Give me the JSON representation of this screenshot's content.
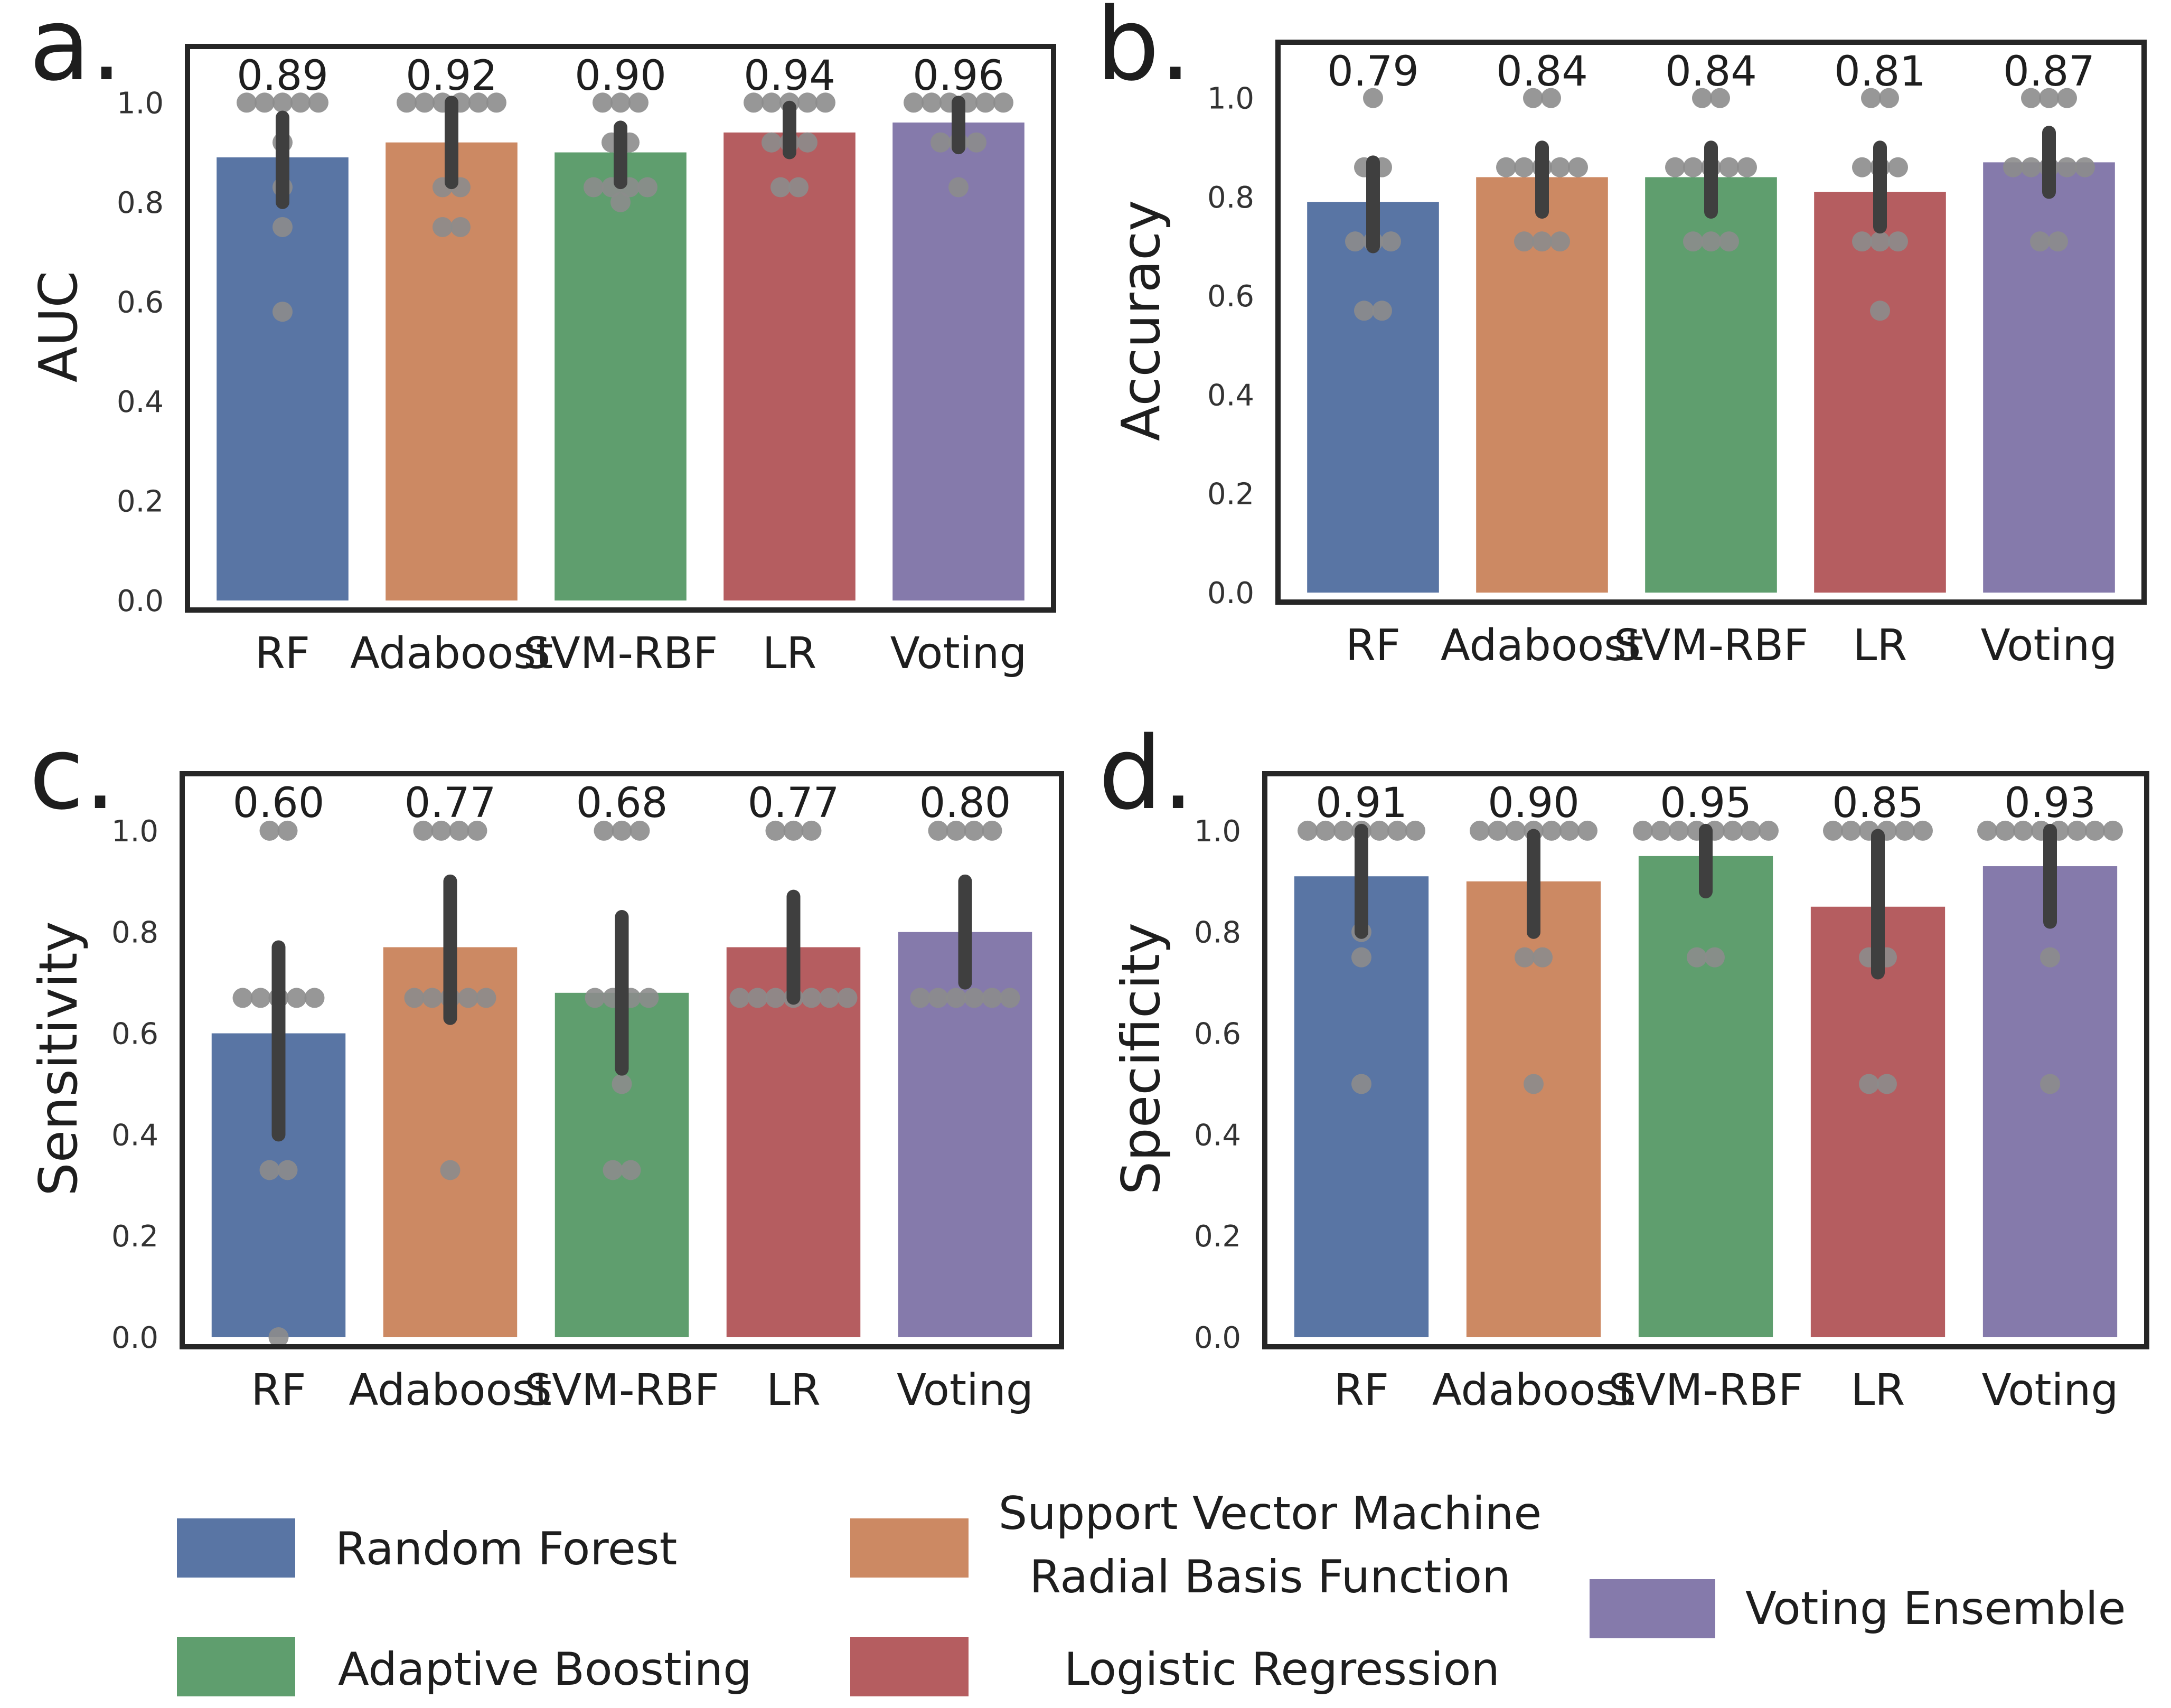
{
  "figure": {
    "legend": [
      {
        "label_lines": [
          "Random Forest"
        ],
        "color": "#5975a4"
      },
      {
        "label_lines": [
          "Support Vector Machine",
          "Radial Basis Function"
        ],
        "color": "#cc8963"
      },
      {
        "label_lines": [
          "Adaptive Boosting"
        ],
        "color": "#5f9e6e"
      },
      {
        "label_lines": [
          "Logistic Regression"
        ],
        "color": "#b55d60"
      },
      {
        "label_lines": [
          "Voting Ensemble"
        ],
        "color": "#857aab"
      }
    ]
  },
  "chart_data": [
    {
      "type": "bar",
      "panel_letter": "a.",
      "ylabel": "AUC",
      "ylim": [
        0,
        1.1
      ],
      "yticks": [
        "0.0",
        "0.2",
        "0.4",
        "0.6",
        "0.8",
        "1.0"
      ],
      "categories": [
        "RF",
        "Adaboost",
        "SVM-RBF",
        "LR",
        "Voting"
      ],
      "values": [
        0.89,
        0.92,
        0.9,
        0.94,
        0.96
      ],
      "value_labels": [
        "0.89",
        "0.92",
        "0.90",
        "0.94",
        "0.96"
      ],
      "errors": [
        [
          0.8,
          0.97
        ],
        [
          0.84,
          1.0
        ],
        [
          0.84,
          0.95
        ],
        [
          0.9,
          0.99
        ],
        [
          0.91,
          1.0
        ]
      ],
      "points": [
        [
          1,
          1,
          1,
          1,
          1,
          0.92,
          0.83,
          0.75,
          0.58
        ],
        [
          1,
          1,
          1,
          1,
          1,
          1,
          0.83,
          0.83,
          0.75,
          0.75
        ],
        [
          1,
          1,
          1,
          0.92,
          0.92,
          0.83,
          0.83,
          0.83,
          0.83,
          0.8
        ],
        [
          1,
          1,
          1,
          1,
          1,
          0.92,
          0.92,
          0.92,
          0.83,
          0.83
        ],
        [
          1,
          1,
          1,
          1,
          1,
          1,
          0.92,
          0.92,
          0.92,
          0.83
        ]
      ],
      "colors": [
        "#5975a4",
        "#cc8963",
        "#5f9e6e",
        "#b55d60",
        "#857aab"
      ]
    },
    {
      "type": "bar",
      "panel_letter": "b.",
      "ylabel": "Accuracy",
      "ylim": [
        0,
        1.1
      ],
      "yticks": [
        "0.0",
        "0.2",
        "0.4",
        "0.6",
        "0.8",
        "1.0"
      ],
      "categories": [
        "RF",
        "Adaboost",
        "SVM-RBF",
        "LR",
        "Voting"
      ],
      "values": [
        0.79,
        0.84,
        0.84,
        0.81,
        0.87
      ],
      "value_labels": [
        "0.79",
        "0.84",
        "0.84",
        "0.81",
        "0.87"
      ],
      "errors": [
        [
          0.7,
          0.87
        ],
        [
          0.77,
          0.9
        ],
        [
          0.77,
          0.9
        ],
        [
          0.74,
          0.9
        ],
        [
          0.81,
          0.93
        ]
      ],
      "points": [
        [
          1,
          0.86,
          0.86,
          0.71,
          0.71,
          0.71,
          0.57,
          0.57
        ],
        [
          1,
          1,
          0.86,
          0.86,
          0.86,
          0.86,
          0.86,
          0.71,
          0.71,
          0.71
        ],
        [
          1,
          1,
          0.86,
          0.86,
          0.86,
          0.86,
          0.86,
          0.71,
          0.71,
          0.71
        ],
        [
          1,
          1,
          0.86,
          0.86,
          0.86,
          0.71,
          0.71,
          0.71,
          0.57
        ],
        [
          1,
          1,
          1,
          0.86,
          0.86,
          0.86,
          0.86,
          0.86,
          0.71,
          0.71
        ]
      ],
      "colors": [
        "#5975a4",
        "#cc8963",
        "#5f9e6e",
        "#b55d60",
        "#857aab"
      ]
    },
    {
      "type": "bar",
      "panel_letter": "c.",
      "ylabel": "Sensitivity",
      "ylim": [
        0,
        1.1
      ],
      "yticks": [
        "0.0",
        "0.2",
        "0.4",
        "0.6",
        "0.8",
        "1.0"
      ],
      "categories": [
        "RF",
        "Adaboost",
        "SVM-RBF",
        "LR",
        "Voting"
      ],
      "values": [
        0.6,
        0.77,
        0.68,
        0.77,
        0.8
      ],
      "value_labels": [
        "0.60",
        "0.77",
        "0.68",
        "0.77",
        "0.80"
      ],
      "errors": [
        [
          0.4,
          0.77
        ],
        [
          0.63,
          0.9
        ],
        [
          0.53,
          0.83
        ],
        [
          0.67,
          0.87
        ],
        [
          0.7,
          0.9
        ]
      ],
      "points": [
        [
          1,
          1,
          0.67,
          0.67,
          0.67,
          0.67,
          0.67,
          0.33,
          0.33,
          0
        ],
        [
          1,
          1,
          1,
          1,
          0.67,
          0.67,
          0.67,
          0.67,
          0.67,
          0.33
        ],
        [
          1,
          1,
          1,
          0.67,
          0.67,
          0.67,
          0.67,
          0.5,
          0.33,
          0.33
        ],
        [
          1,
          1,
          1,
          0.67,
          0.67,
          0.67,
          0.67,
          0.67,
          0.67,
          0.67
        ],
        [
          1,
          1,
          1,
          1,
          0.67,
          0.67,
          0.67,
          0.67,
          0.67,
          0.67
        ]
      ],
      "colors": [
        "#5975a4",
        "#cc8963",
        "#5f9e6e",
        "#b55d60",
        "#857aab"
      ]
    },
    {
      "type": "bar",
      "panel_letter": "d.",
      "ylabel": "Specificity",
      "ylim": [
        0,
        1.1
      ],
      "yticks": [
        "0.0",
        "0.2",
        "0.4",
        "0.6",
        "0.8",
        "1.0"
      ],
      "categories": [
        "RF",
        "Adaboost",
        "SVM-RBF",
        "LR",
        "Voting"
      ],
      "values": [
        0.91,
        0.9,
        0.95,
        0.85,
        0.93
      ],
      "value_labels": [
        "0.91",
        "0.90",
        "0.95",
        "0.85",
        "0.93"
      ],
      "errors": [
        [
          0.8,
          1.0
        ],
        [
          0.8,
          0.99
        ],
        [
          0.88,
          1.0
        ],
        [
          0.72,
          0.99
        ],
        [
          0.82,
          1.0
        ]
      ],
      "points": [
        [
          1,
          1,
          1,
          1,
          1,
          1,
          1,
          0.8,
          0.75,
          0.5
        ],
        [
          1,
          1,
          1,
          1,
          1,
          1,
          1,
          0.75,
          0.75,
          0.5
        ],
        [
          1,
          1,
          1,
          1,
          1,
          1,
          1,
          1,
          0.75,
          0.75
        ],
        [
          1,
          1,
          1,
          1,
          1,
          1,
          0.75,
          0.75,
          0.5,
          0.5
        ],
        [
          1,
          1,
          1,
          1,
          1,
          1,
          1,
          1,
          0.75,
          0.5
        ]
      ],
      "colors": [
        "#5975a4",
        "#cc8963",
        "#5f9e6e",
        "#b55d60",
        "#857aab"
      ]
    }
  ]
}
